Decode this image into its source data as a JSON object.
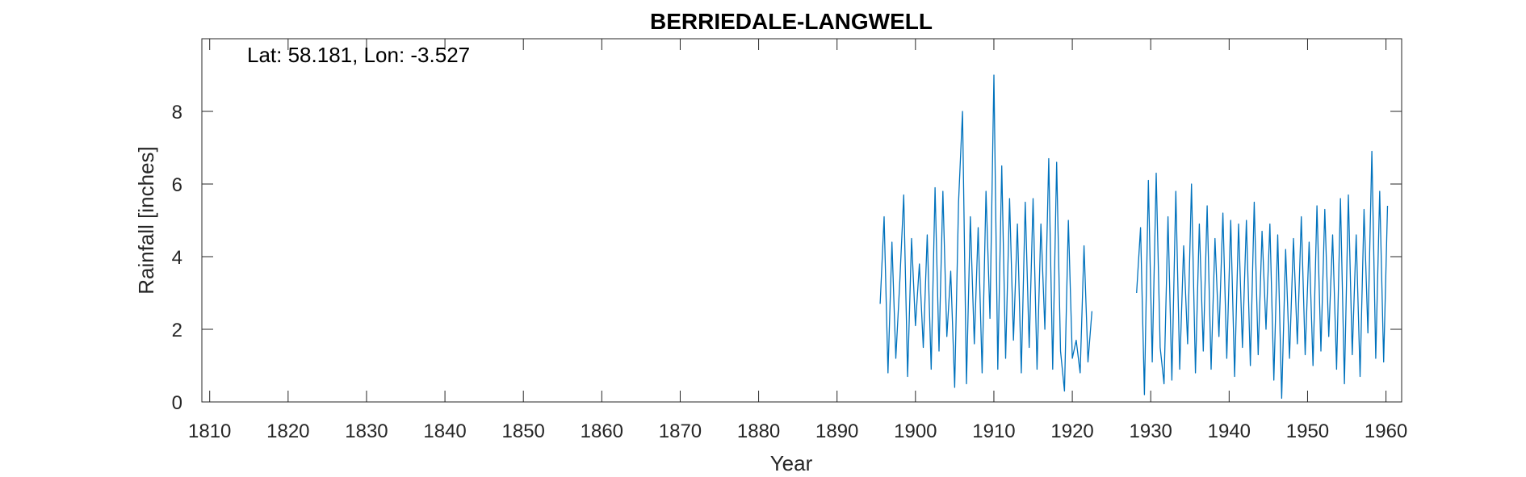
{
  "chart_data": {
    "type": "line",
    "title": "BERRIEDALE-LANGWELL",
    "annotation": "Lat: 58.181, Lon: -3.527",
    "xlabel": "Year",
    "ylabel": "Rainfall [inches]",
    "xlim": [
      1809,
      1962
    ],
    "ylim": [
      0,
      10
    ],
    "xticks": [
      1810,
      1820,
      1830,
      1840,
      1850,
      1860,
      1870,
      1880,
      1890,
      1900,
      1910,
      1920,
      1930,
      1940,
      1950,
      1960
    ],
    "yticks": [
      0,
      2,
      4,
      6,
      8
    ],
    "grid": false,
    "series_color": "#0072BD",
    "series": [
      {
        "segments": [
          {
            "x": [
              1895.5,
              1896.0,
              1896.5,
              1897.0,
              1897.5,
              1898.0,
              1898.5,
              1899.0,
              1899.5,
              1900.0,
              1900.5,
              1901.0,
              1901.5,
              1902.0,
              1902.5,
              1903.0,
              1903.5,
              1904.0,
              1904.5,
              1905.0,
              1905.5,
              1906.0,
              1906.5,
              1907.0,
              1907.5,
              1908.0,
              1908.5,
              1909.0,
              1909.5,
              1910.0,
              1910.5,
              1911.0,
              1911.5,
              1912.0,
              1912.5,
              1913.0,
              1913.5,
              1914.0,
              1914.5,
              1915.0,
              1915.5,
              1916.0,
              1916.5,
              1917.0,
              1917.5,
              1918.0,
              1918.5,
              1919.0,
              1919.5,
              1920.0,
              1920.5,
              1921.0,
              1921.5,
              1922.0,
              1922.5
            ],
            "y": [
              2.7,
              5.1,
              0.8,
              4.4,
              1.2,
              3.3,
              5.7,
              0.7,
              4.5,
              2.1,
              3.8,
              1.5,
              4.6,
              0.9,
              5.9,
              1.4,
              5.8,
              1.8,
              3.6,
              0.4,
              5.5,
              8.0,
              0.5,
              5.1,
              1.6,
              4.8,
              0.8,
              5.8,
              2.3,
              9.0,
              0.9,
              6.5,
              1.2,
              5.6,
              1.7,
              4.9,
              0.8,
              5.5,
              1.5,
              5.6,
              0.9,
              4.9,
              2.0,
              6.7,
              0.9,
              6.6,
              1.4,
              0.3,
              5.0,
              1.2,
              1.7,
              0.8,
              4.3,
              1.1,
              2.5
            ]
          },
          {
            "x": [
              1928.2,
              1928.7,
              1929.2,
              1929.7,
              1930.2,
              1930.7,
              1931.2,
              1931.7,
              1932.2,
              1932.7,
              1933.2,
              1933.7,
              1934.2,
              1934.7,
              1935.2,
              1935.7,
              1936.2,
              1936.7,
              1937.2,
              1937.7,
              1938.2,
              1938.7,
              1939.2,
              1939.7,
              1940.2,
              1940.7,
              1941.2,
              1941.7,
              1942.2,
              1942.7,
              1943.2,
              1943.7,
              1944.2,
              1944.7,
              1945.2,
              1945.7,
              1946.2,
              1946.7,
              1947.2,
              1947.7,
              1948.2,
              1948.7,
              1949.2,
              1949.7,
              1950.2,
              1950.7,
              1951.2,
              1951.7,
              1952.2,
              1952.7,
              1953.2,
              1953.7,
              1954.2,
              1954.7,
              1955.2,
              1955.7,
              1956.2,
              1956.7,
              1957.2,
              1957.7,
              1958.2,
              1958.7,
              1959.2,
              1959.7,
              1960.2
            ],
            "y": [
              3.0,
              4.8,
              0.2,
              6.1,
              1.1,
              6.3,
              1.5,
              0.5,
              5.1,
              0.6,
              5.8,
              0.9,
              4.3,
              1.6,
              6.0,
              0.8,
              4.9,
              1.4,
              5.4,
              0.9,
              4.5,
              1.8,
              5.2,
              1.2,
              5.0,
              0.7,
              4.9,
              1.5,
              5.0,
              1.0,
              5.5,
              1.3,
              4.7,
              2.0,
              4.9,
              0.6,
              4.6,
              0.1,
              4.2,
              1.2,
              4.5,
              1.6,
              5.1,
              1.3,
              4.4,
              1.0,
              5.4,
              1.4,
              5.3,
              1.8,
              4.6,
              0.9,
              5.6,
              0.5,
              5.7,
              1.3,
              4.6,
              0.7,
              5.3,
              1.9,
              6.9,
              1.2,
              5.8,
              1.1,
              5.4
            ]
          }
        ]
      }
    ]
  }
}
